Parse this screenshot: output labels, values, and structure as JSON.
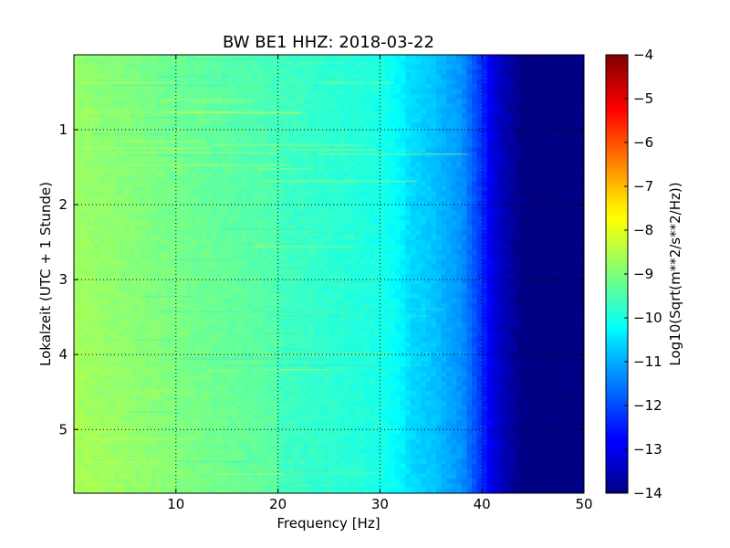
{
  "chart_data": {
    "type": "heatmap",
    "title": "BW BE1 HHZ: 2018-03-22",
    "xlabel": "Frequency [Hz]",
    "ylabel": "Lokalzeit (UTC + 1 Stunde)",
    "xlim": [
      0,
      50
    ],
    "ylim": [
      5.85,
      0
    ],
    "xticks": [
      10,
      20,
      30,
      40,
      50
    ],
    "yticks": [
      1,
      2,
      3,
      4,
      5
    ],
    "grid": true,
    "colorbar": {
      "label": "Log10(Sqrt(m**2/s**2/Hz))",
      "range": [
        -14,
        -4
      ],
      "ticks": [
        -4,
        -5,
        -6,
        -7,
        -8,
        -9,
        -10,
        -11,
        -12,
        -13,
        -14
      ],
      "colormap": "jet"
    },
    "frequency_profile": {
      "frequency_hz": [
        0,
        5,
        10,
        15,
        20,
        25,
        28,
        30,
        32,
        33,
        35,
        38,
        40,
        41,
        42,
        43,
        44,
        45,
        50
      ],
      "level": [
        -8.8,
        -9.0,
        -9.2,
        -9.4,
        -9.6,
        -9.8,
        -9.9,
        -10.0,
        -10.3,
        -10.6,
        -10.8,
        -11.3,
        -12.3,
        -13.0,
        -13.4,
        -13.7,
        -14.0,
        -14.0,
        -14.0
      ]
    }
  }
}
